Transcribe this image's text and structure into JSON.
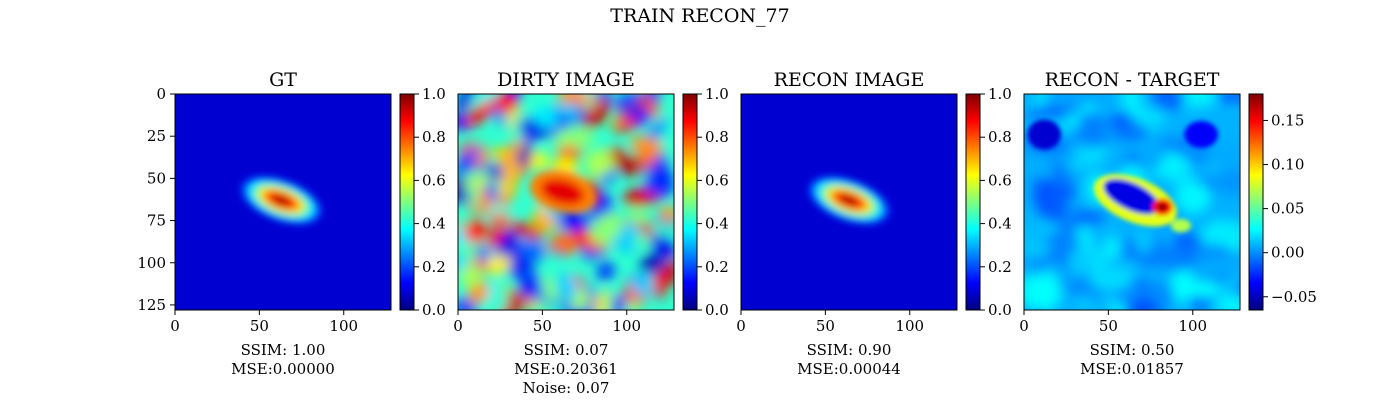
{
  "figure": {
    "suptitle": "TRAIN RECON_77"
  },
  "colormaps": {
    "jet": [
      "#00007f",
      "#0000ff",
      "#007fff",
      "#00ffff",
      "#7fff7f",
      "#ffff00",
      "#ff7f00",
      "#ff0000",
      "#7f0000"
    ]
  },
  "chart_data": [
    {
      "type": "heatmap",
      "title": "GT",
      "image": "gt",
      "xticks": [
        "0",
        "50",
        "100"
      ],
      "yticks": [
        "0",
        "25",
        "50",
        "75",
        "100",
        "125"
      ],
      "xlim": [
        0,
        128
      ],
      "ylim": [
        128,
        0
      ],
      "colorbar": {
        "min": 0.0,
        "max": 1.0,
        "ticks": [
          "0.0",
          "0.2",
          "0.4",
          "0.6",
          "0.8",
          "1.0"
        ]
      },
      "metrics": [
        "SSIM: 1.00",
        "MSE:0.00000"
      ]
    },
    {
      "type": "heatmap",
      "title": "DIRTY IMAGE",
      "image": "dirty",
      "xticks": [
        "0",
        "50",
        "100"
      ],
      "xlim": [
        0,
        128
      ],
      "colorbar": {
        "min": 0.0,
        "max": 1.0,
        "ticks": [
          "0.0",
          "0.2",
          "0.4",
          "0.6",
          "0.8",
          "1.0"
        ]
      },
      "metrics": [
        "SSIM: 0.07",
        "MSE:0.20361",
        "Noise: 0.07"
      ]
    },
    {
      "type": "heatmap",
      "title": "RECON IMAGE",
      "image": "recon",
      "xticks": [
        "0",
        "50",
        "100"
      ],
      "xlim": [
        0,
        128
      ],
      "colorbar": {
        "min": 0.0,
        "max": 1.0,
        "ticks": [
          "0.0",
          "0.2",
          "0.4",
          "0.6",
          "0.8",
          "1.0"
        ]
      },
      "metrics": [
        "SSIM: 0.90",
        "MSE:0.00044"
      ]
    },
    {
      "type": "heatmap",
      "title": "RECON - TARGET",
      "image": "diff",
      "xticks": [
        "0",
        "50",
        "100"
      ],
      "xlim": [
        0,
        128
      ],
      "colorbar": {
        "min": -0.065,
        "max": 0.18,
        "ticks": [
          "−0.05",
          "0.00",
          "0.05",
          "0.10",
          "0.15"
        ]
      },
      "metrics": [
        "SSIM: 0.50",
        "MSE:0.01857"
      ]
    }
  ]
}
